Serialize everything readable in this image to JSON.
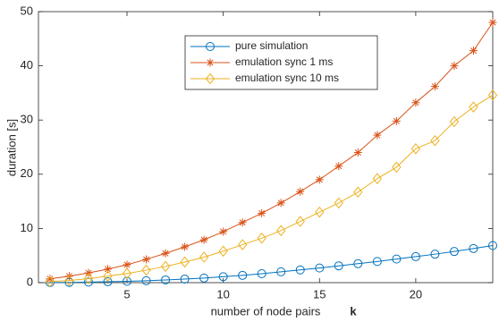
{
  "chart_data": {
    "type": "line",
    "xlabel": "number of node pairs",
    "xlabel_symbol": "k",
    "ylabel": "duration [s]",
    "x": [
      1,
      2,
      3,
      4,
      5,
      6,
      7,
      8,
      9,
      10,
      11,
      12,
      13,
      14,
      15,
      16,
      17,
      18,
      19,
      20,
      21,
      22,
      23,
      24
    ],
    "series": [
      {
        "name": "pure simulation",
        "color": "#0072bd",
        "marker": "circle",
        "values": [
          0.02,
          0.05,
          0.1,
          0.17,
          0.25,
          0.35,
          0.5,
          0.65,
          0.85,
          1.1,
          1.35,
          1.65,
          2.0,
          2.35,
          2.7,
          3.1,
          3.5,
          3.9,
          4.35,
          4.8,
          5.25,
          5.75,
          6.3,
          6.85
        ]
      },
      {
        "name": "emulation sync 1 ms",
        "color": "#d95319",
        "marker": "asterisk",
        "values": [
          0.7,
          1.2,
          1.8,
          2.5,
          3.3,
          4.3,
          5.4,
          6.6,
          7.9,
          9.4,
          11.1,
          12.8,
          14.7,
          16.8,
          19.0,
          21.5,
          24.0,
          27.2,
          29.8,
          33.2,
          36.2,
          40.0,
          42.8,
          48.0
        ]
      },
      {
        "name": "emulation sync 10 ms",
        "color": "#edb120",
        "marker": "diamond",
        "values": [
          0.2,
          0.4,
          0.75,
          1.2,
          1.7,
          2.3,
          3.0,
          3.8,
          4.7,
          5.8,
          7.0,
          8.2,
          9.6,
          11.3,
          13.0,
          14.7,
          16.7,
          19.2,
          21.3,
          24.7,
          26.2,
          29.7,
          32.4,
          34.6
        ]
      }
    ],
    "xlim": [
      0.4,
      24
    ],
    "xticks": [
      5,
      10,
      15,
      20
    ],
    "ylim": [
      0,
      50
    ],
    "yticks": [
      0,
      10,
      20,
      30,
      40,
      50
    ]
  }
}
